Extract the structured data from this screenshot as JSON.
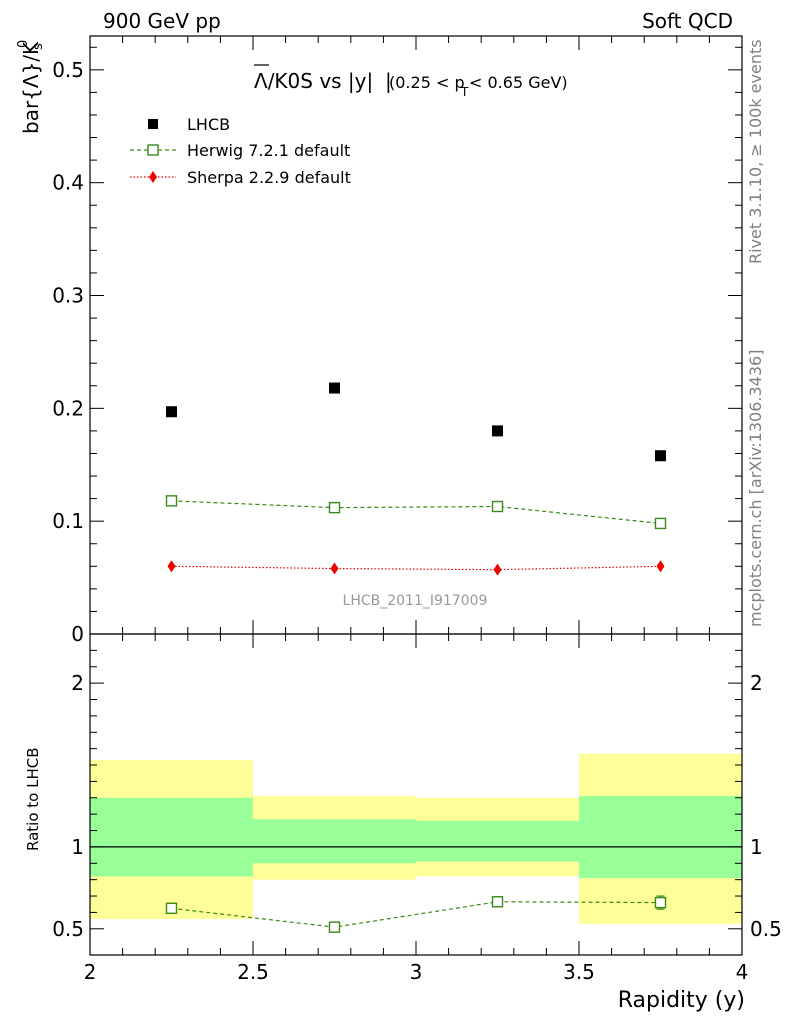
{
  "header": {
    "left": "900 GeV pp",
    "right": "Soft QCD"
  },
  "side": {
    "rivet": "Rivet 3.1.10, ≥ 100k events",
    "mcplots": "mcplots.cern.ch [arXiv:1306.3436]"
  },
  "chart_data": [
    {
      "type": "scatter",
      "title": {
        "bar": "Λ",
        "main": "/K0S vs |y|",
        "cut_a": "(0.25 < p",
        "cut_sub": "T",
        "cut_b": " < 0.65 GeV)"
      },
      "ylabel": {
        "main": "bar{Λ}/K",
        "sub": "s",
        "sup": "0"
      },
      "watermark": "LHCB_2011_I917009",
      "xlim": [
        2,
        4
      ],
      "ylim": [
        0,
        0.53
      ],
      "yticks": [
        {
          "v": 0.1,
          "label": "0.1"
        },
        {
          "v": 0.2,
          "label": "0.2"
        },
        {
          "v": 0.3,
          "label": "0.3"
        },
        {
          "v": 0.4,
          "label": "0.4"
        },
        {
          "v": 0.5,
          "label": "0.5"
        },
        {
          "v": 0.0,
          "label": "0"
        }
      ],
      "x": [
        2.25,
        2.75,
        3.25,
        3.75
      ],
      "series": [
        {
          "name": "LHCB",
          "color": "#000000",
          "marker": "filled-square",
          "values": [
            0.197,
            0.218,
            0.18,
            0.158
          ]
        },
        {
          "name": "Herwig 7.2.1 default",
          "color": "#3a8a1a",
          "marker": "open-square",
          "line": "dashed",
          "values": [
            0.118,
            0.112,
            0.113,
            0.098
          ]
        },
        {
          "name": "Sherpa 2.2.9 default",
          "color": "#ee0000",
          "marker": "diamond",
          "line": "dotted",
          "values": [
            0.06,
            0.058,
            0.057,
            0.06
          ]
        }
      ]
    },
    {
      "type": "line",
      "ylabel": "Ratio to LHCB",
      "xlabel": "Rapidity (y)",
      "xlim": [
        2,
        4
      ],
      "ylim": [
        0.34,
        2.3
      ],
      "xticks": [
        {
          "v": 2,
          "label": "2"
        },
        {
          "v": 2.5,
          "label": "2.5"
        },
        {
          "v": 3,
          "label": "3"
        },
        {
          "v": 3.5,
          "label": "3.5"
        },
        {
          "v": 4,
          "label": "4"
        }
      ],
      "yticks": [
        {
          "v": 0.5,
          "label": "0.5"
        },
        {
          "v": 1,
          "label": "1"
        },
        {
          "v": 2,
          "label": "2"
        }
      ],
      "bands": [
        {
          "x0": 2.0,
          "x1": 2.5,
          "yellow": [
            0.56,
            1.53
          ],
          "green": [
            0.82,
            1.3
          ]
        },
        {
          "x0": 2.5,
          "x1": 3.0,
          "yellow": [
            0.8,
            1.31
          ],
          "green": [
            0.9,
            1.17
          ]
        },
        {
          "x0": 3.0,
          "x1": 3.5,
          "yellow": [
            0.82,
            1.3
          ],
          "green": [
            0.91,
            1.16
          ]
        },
        {
          "x0": 3.5,
          "x1": 4.0,
          "yellow": [
            0.53,
            1.57
          ],
          "green": [
            0.81,
            1.31
          ]
        }
      ],
      "series": [
        {
          "name": "Herwig 7.2.1 default",
          "color": "#3a8a1a",
          "x": [
            2.25,
            2.75,
            3.25,
            3.75
          ],
          "values": [
            0.625,
            0.51,
            0.665,
            0.66
          ],
          "err": [
            0.015,
            0.025,
            0.03,
            0.04
          ]
        }
      ]
    }
  ]
}
